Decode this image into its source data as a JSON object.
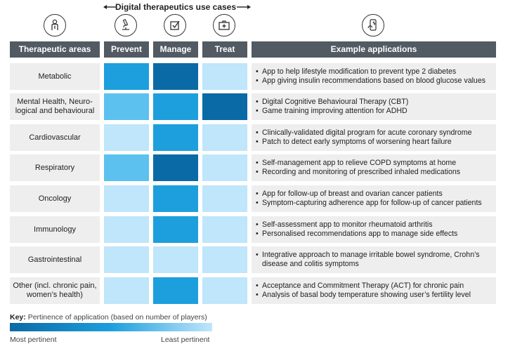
{
  "use_cases_title": "Digital therapeutics use cases",
  "headers": {
    "areas": "Therapeutic areas",
    "prevent": "Prevent",
    "manage": "Manage",
    "treat": "Treat",
    "examples": "Example applications"
  },
  "icons": [
    "person-info-icon",
    "microscope-icon",
    "checkbox-icon",
    "first-aid-kit-icon",
    "phone-health-icon"
  ],
  "colors": {
    "most": "#0a6aa5",
    "high": "#1d9fdd",
    "mid": "#5cc1ef",
    "least": "#bfe6fa",
    "header": "#525a63"
  },
  "rows": [
    {
      "area": "Metabolic",
      "prevent": "high",
      "manage": "most",
      "treat": "least",
      "apps": [
        "App to help lifestyle modification to prevent type 2 diabetes",
        "App giving insulin recommendations based on blood glucose values"
      ]
    },
    {
      "area": "Mental Health, Neuro-logical and behavioural",
      "prevent": "mid",
      "manage": "high",
      "treat": "most",
      "apps": [
        "Digital Cognitive Behavioural Therapy (CBT)",
        "Game training improving attention for ADHD"
      ]
    },
    {
      "area": "Cardiovascular",
      "prevent": "least",
      "manage": "high",
      "treat": "least",
      "apps": [
        "Clinically-validated digital program for acute coronary syndrome",
        "Patch to detect early symptoms of worsening heart failure"
      ]
    },
    {
      "area": "Respiratory",
      "prevent": "mid",
      "manage": "most",
      "treat": "least",
      "apps": [
        "Self-management app to relieve COPD symptoms at home",
        "Recording and monitoring of prescribed inhaled medications"
      ]
    },
    {
      "area": "Oncology",
      "prevent": "least",
      "manage": "high",
      "treat": "least",
      "apps": [
        "App for follow-up of breast and ovarian cancer patients",
        "Symptom-capturing adherence app for follow-up of cancer patients"
      ]
    },
    {
      "area": "Immunology",
      "prevent": "least",
      "manage": "high",
      "treat": "least",
      "apps": [
        "Self-assessment app to monitor rheumatoid arthritis",
        "Personalised recommendations app to manage side effects"
      ]
    },
    {
      "area": "Gastrointestinal",
      "prevent": "least",
      "manage": "least",
      "treat": "least",
      "apps": [
        "Integrative approach to manage irritable bowel syndrome, Crohn’s disease and colitis symptoms"
      ]
    },
    {
      "area": "Other (incl. chronic pain, women’s health)",
      "prevent": "least",
      "manage": "high",
      "treat": "least",
      "apps": [
        "Acceptance and Commitment Therapy (ACT) for chronic pain",
        "Analysis of basal body temperature showing user’s fertility level"
      ]
    }
  ],
  "key": {
    "label_bold": "Key:",
    "label_rest": "Pertinence of application (based on number of players)",
    "most": "Most pertinent",
    "least": "Least pertinent"
  }
}
